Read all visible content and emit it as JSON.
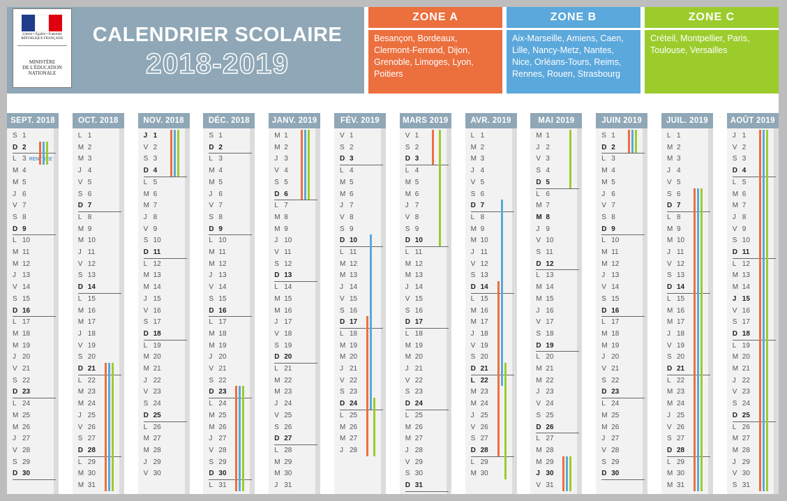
{
  "header": {
    "republique": "Liberté • Égalité • Fraternité\nRÉPUBLIQUE FRANÇAISE",
    "ministry": "MINISTÈRE\nDE L'ÉDUCATION\nNATIONALE",
    "title": "CALENDRIER SCOLAIRE",
    "years": "2018-2019"
  },
  "colors": {
    "zoneA": "#ec6f3e",
    "zoneB": "#5ba8dc",
    "zoneC": "#9ccc2c",
    "banner": "#8fa7b6"
  },
  "zones": [
    {
      "name": "ZONE A",
      "cities": "Besançon, Bordeaux, Clermont-Ferrand, Dijon, Grenoble, Limoges, Lyon, Poitiers"
    },
    {
      "name": "ZONE B",
      "cities": "Aix-Marseille, Amiens, Caen, Lille, Nancy-Metz, Nantes, Nice, Orléans-Tours, Reims, Rennes, Rouen, Strasbourg"
    },
    {
      "name": "ZONE C",
      "cities": "Créteil, Montpellier, Paris, Toulouse, Versailles"
    }
  ],
  "rentree_label": "RENTRÉE",
  "months": [
    {
      "name": "SEPT. 2018",
      "letters": "SDLMMJVSDLMMJVSDLMMJVSDLMMJVSD",
      "days": 30,
      "bold": []
    },
    {
      "name": "OCT. 2018",
      "letters": "LMMJVSDLMMJVSDLMMJVSDLMMJVSDLMM",
      "days": 31,
      "bold": []
    },
    {
      "name": "NOV. 2018",
      "letters": "JVSDLMMJVSDLMMJVSDLMMJVSDLMMJV",
      "days": 30,
      "bold": [
        1
      ]
    },
    {
      "name": "DÉC. 2018",
      "letters": "SDLMMJVSDLMMJVSDLMMJVSDLMMJVSDL",
      "days": 31,
      "bold": []
    },
    {
      "name": "JANV. 2019",
      "letters": "MMJVSDLMMJVSDLMMJVSDLMMJVSDLMMJ",
      "days": 31,
      "bold": []
    },
    {
      "name": "FÉV. 2019",
      "letters": "VSDLMMJVSDLMMJVSDLMMJVSDLMMJ",
      "days": 28,
      "bold": []
    },
    {
      "name": "MARS 2019",
      "letters": "VSDLMMJVSDLMMJVSDLMMJVSDLMMJVSD",
      "days": 31,
      "bold": []
    },
    {
      "name": "AVR. 2019",
      "letters": "LMMJVSDLMMJVSDLMMJVSDLMMJVSDLM",
      "days": 30,
      "bold": [
        22
      ]
    },
    {
      "name": "MAI 2019",
      "letters": "MJVSDLMMJVSDLMMJVSDLMMJVSDLMMJV",
      "days": 31,
      "bold": [
        8,
        30
      ]
    },
    {
      "name": "JUIN 2019",
      "letters": "SDLMMJVSDLMMJVSDLMMJVSDLMMJVSD",
      "days": 30,
      "bold": []
    },
    {
      "name": "JUIL. 2019",
      "letters": "LMMJVSDLMMJVSDLMMJVSDLMMJVSDLMM",
      "days": 31,
      "bold": []
    },
    {
      "name": "AOÛT 2019",
      "letters": "JVSDLMMJVSDLMMJVSDLMMJVSDLMMJVS",
      "days": 31,
      "bold": [
        15
      ]
    }
  ],
  "holidays": [
    {
      "month": 0,
      "start": 2,
      "end": 3,
      "zones": [
        "A",
        "B",
        "C"
      ]
    },
    {
      "month": 1,
      "start": 21,
      "end": 31,
      "zones": [
        "A",
        "B",
        "C"
      ]
    },
    {
      "month": 2,
      "start": 1,
      "end": 4,
      "zones": [
        "A",
        "B",
        "C"
      ]
    },
    {
      "month": 3,
      "start": 23,
      "end": 31,
      "zones": [
        "A",
        "B",
        "C"
      ]
    },
    {
      "month": 4,
      "start": 1,
      "end": 6,
      "zones": [
        "A",
        "B",
        "C"
      ]
    },
    {
      "month": 5,
      "start": 10,
      "end": 24,
      "zones": [
        "B"
      ]
    },
    {
      "month": 5,
      "start": 17,
      "end": 28,
      "zones": [
        "A"
      ]
    },
    {
      "month": 5,
      "start": 24,
      "end": 28,
      "zones": [
        "C"
      ]
    },
    {
      "month": 6,
      "start": 1,
      "end": 3,
      "zones": [
        "A"
      ]
    },
    {
      "month": 6,
      "start": 1,
      "end": 10,
      "zones": [
        "C"
      ]
    },
    {
      "month": 7,
      "start": 7,
      "end": 22,
      "zones": [
        "B"
      ]
    },
    {
      "month": 7,
      "start": 14,
      "end": 28,
      "zones": [
        "A"
      ]
    },
    {
      "month": 7,
      "start": 21,
      "end": 30,
      "zones": [
        "C"
      ]
    },
    {
      "month": 8,
      "start": 1,
      "end": 5,
      "zones": [
        "C"
      ]
    },
    {
      "month": 8,
      "start": 29,
      "end": 31,
      "zones": [
        "A",
        "B",
        "C"
      ]
    },
    {
      "month": 9,
      "start": 1,
      "end": 2,
      "zones": [
        "A",
        "B",
        "C"
      ]
    },
    {
      "month": 10,
      "start": 6,
      "end": 31,
      "zones": [
        "A",
        "B",
        "C"
      ]
    },
    {
      "month": 11,
      "start": 1,
      "end": 31,
      "zones": [
        "A",
        "B",
        "C"
      ]
    }
  ]
}
